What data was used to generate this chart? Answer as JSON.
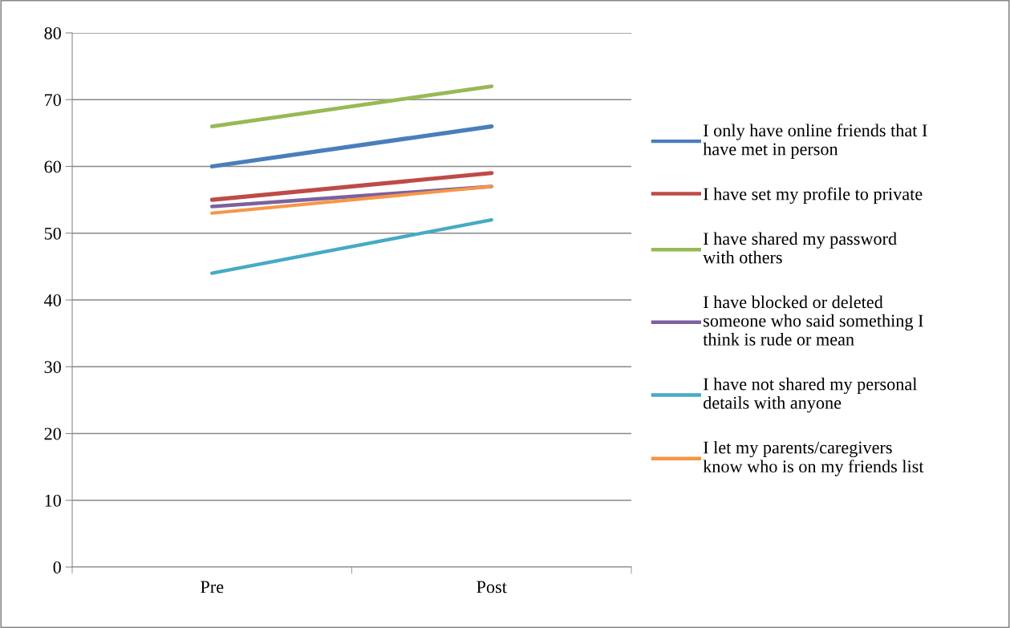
{
  "chart_data": {
    "type": "line",
    "categories": [
      "Pre",
      "Post"
    ],
    "series": [
      {
        "name": "I only have online friends that I\nhave met in person",
        "color": "#4a7ebb",
        "values": [
          60,
          66
        ]
      },
      {
        "name": "I have set my profile to private",
        "color": "#be4b48",
        "values": [
          55,
          59
        ]
      },
      {
        "name": "I have shared my password\nwith others",
        "color": "#98b954",
        "values": [
          66,
          72
        ]
      },
      {
        "name": "I have blocked or deleted\nsomeone who said something I\nthink is rude or mean",
        "color": "#7d60a0",
        "values": [
          54,
          57
        ]
      },
      {
        "name": "I have not shared my personal\ndetails with anyone",
        "color": "#46aac5",
        "values": [
          44,
          52
        ]
      },
      {
        "name": "I let my parents/caregivers\nknow who is on my friends list",
        "color": "#f79646",
        "values": [
          53,
          57
        ]
      }
    ],
    "ylim": [
      0,
      80
    ],
    "yticks": [
      0,
      10,
      20,
      30,
      40,
      50,
      60,
      70,
      80
    ],
    "grid": "y",
    "legend": "right",
    "marker": "none",
    "line_style": "solid"
  }
}
